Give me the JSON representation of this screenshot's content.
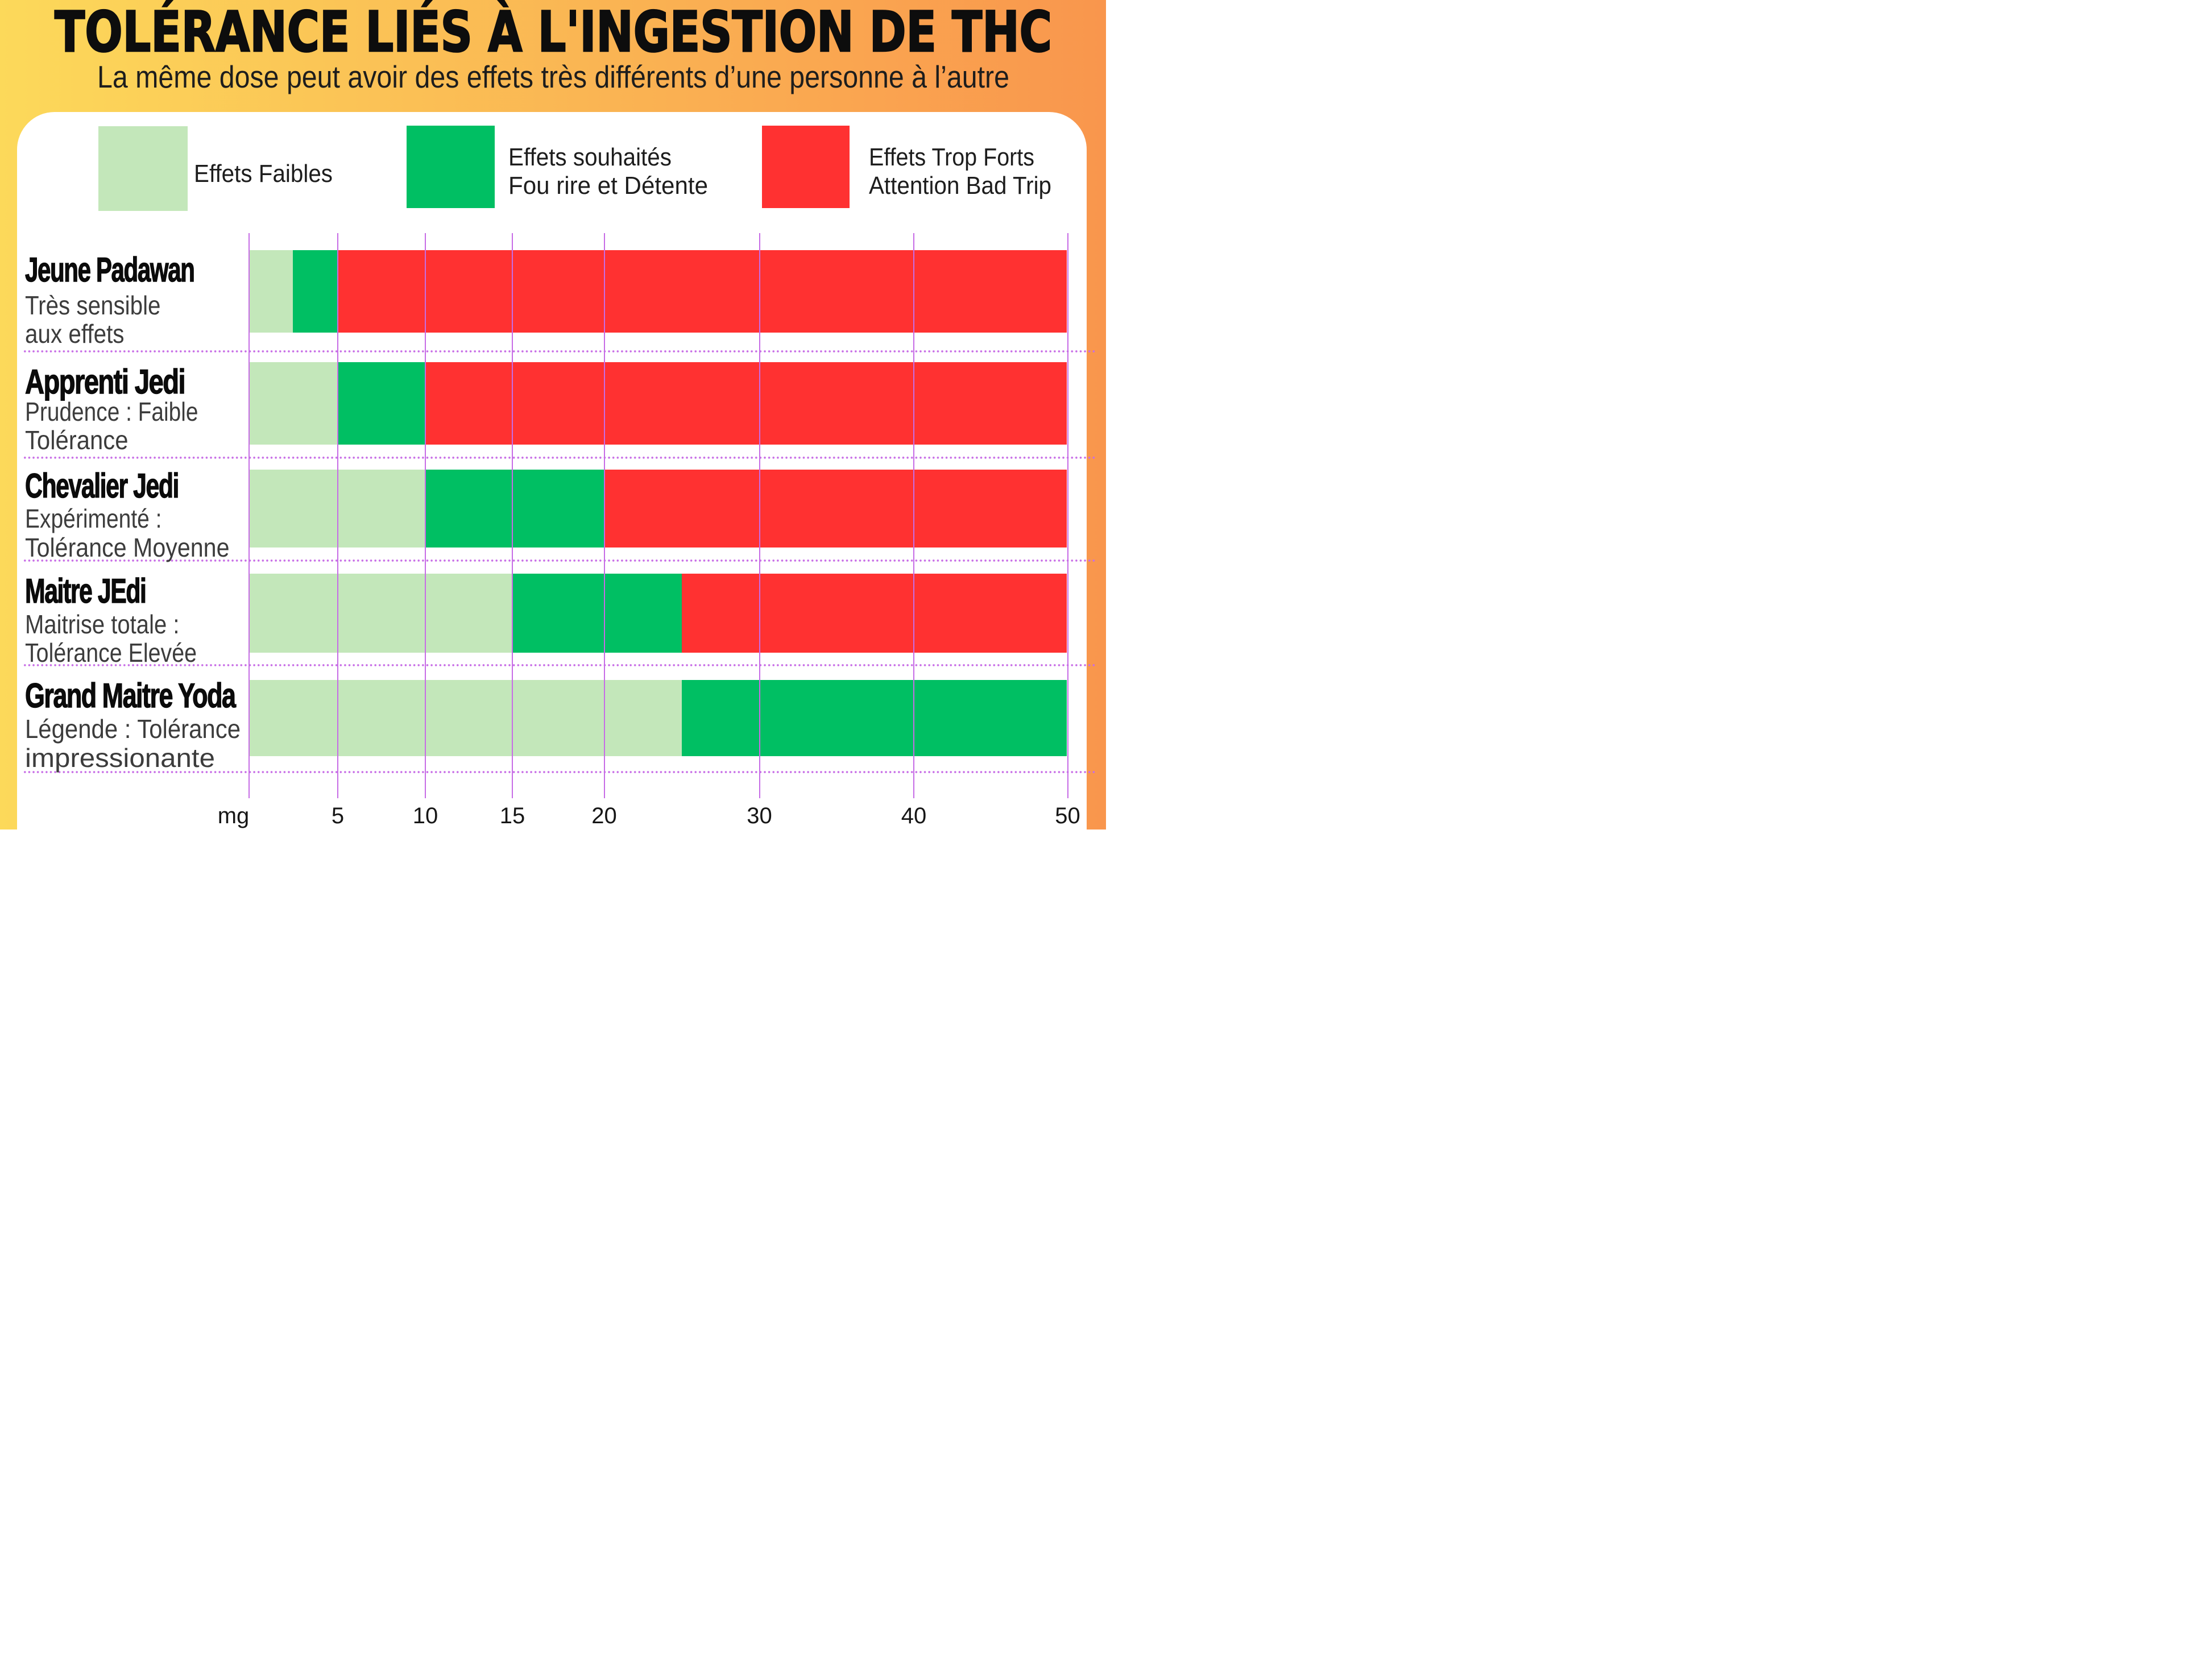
{
  "header": {
    "title": "TOLÉRANCE LIÉS À L'INGESTION DE THC",
    "subtitle": "La même dose peut avoir des effets très différents d’une personne à l’autre"
  },
  "colors": {
    "background_left": "#fcd95a",
    "background_right": "#f9964d",
    "card": "#ffffff",
    "weak": "#c3e7ba",
    "desired": "#00bf63",
    "strong": "#ff3131",
    "grid": "#c76ce6",
    "title_text": "#0d0d0d",
    "subtitle_text": "#1d1d1d",
    "desc_text": "#3c3c3c"
  },
  "chart_data": {
    "type": "bar",
    "orientation": "horizontal-stacked",
    "unit": "mg",
    "legend_position": "top",
    "grid": true,
    "axis": {
      "range": [
        0,
        50
      ],
      "ticks": [
        {
          "value": 0,
          "label": "mg"
        },
        {
          "value": 5,
          "label": "5"
        },
        {
          "value": 10,
          "label": "10"
        },
        {
          "value": 15,
          "label": "15"
        },
        {
          "value": 20,
          "label": "20"
        },
        {
          "value": 30,
          "label": "30"
        },
        {
          "value": 40,
          "label": "40"
        },
        {
          "value": 50,
          "label": "50"
        }
      ]
    },
    "series": [
      {
        "key": "weak",
        "label_lines": [
          "Effets Faibles",
          ""
        ]
      },
      {
        "key": "desired",
        "label_lines": [
          "Effets souhaités",
          "Fou rire et Détente"
        ]
      },
      {
        "key": "strong",
        "label_lines": [
          "Effets Trop Forts",
          "Attention Bad Trip"
        ]
      }
    ],
    "rows": [
      {
        "title": "Jeune Padawan",
        "desc": [
          "Très sensible",
          "aux effets"
        ],
        "segments": [
          {
            "key": "weak",
            "from": 0,
            "to": 2.5
          },
          {
            "key": "desired",
            "from": 2.5,
            "to": 5
          },
          {
            "key": "strong",
            "from": 5,
            "to": 50
          }
        ]
      },
      {
        "title": "Apprenti Jedi",
        "desc": [
          "Prudence : Faible",
          "Tolérance"
        ],
        "segments": [
          {
            "key": "weak",
            "from": 0,
            "to": 5
          },
          {
            "key": "desired",
            "from": 5,
            "to": 10
          },
          {
            "key": "strong",
            "from": 10,
            "to": 50
          }
        ]
      },
      {
        "title": "Chevalier Jedi",
        "desc": [
          "Expérimenté :",
          "Tolérance Moyenne"
        ],
        "segments": [
          {
            "key": "weak",
            "from": 0,
            "to": 10
          },
          {
            "key": "desired",
            "from": 10,
            "to": 20
          },
          {
            "key": "strong",
            "from": 20,
            "to": 50
          }
        ]
      },
      {
        "title": "Maitre JEdi",
        "desc": [
          "Maitrise totale :",
          "Tolérance Elevée"
        ],
        "segments": [
          {
            "key": "weak",
            "from": 0,
            "to": 15
          },
          {
            "key": "desired",
            "from": 15,
            "to": 25
          },
          {
            "key": "strong",
            "from": 25,
            "to": 50
          }
        ]
      },
      {
        "title": "Grand Maitre Yoda",
        "desc": [
          "Légende : Tolérance",
          "impressionante"
        ],
        "segments": [
          {
            "key": "weak",
            "from": 0,
            "to": 25
          },
          {
            "key": "desired",
            "from": 25,
            "to": 50
          }
        ]
      }
    ]
  }
}
